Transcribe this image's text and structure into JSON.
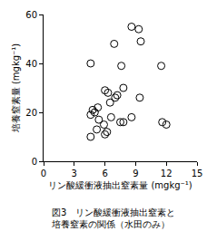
{
  "chart_data": {
    "type": "scatter",
    "title": "図3　リン酸緩衝液抽出窒素と\n培養窒素の関係（水田のみ）",
    "x_label": "リン酸緩衝液抽出窒素量 (mgkg⁻¹)",
    "y_label": "培養窒素量 (mgkg⁻¹)",
    "x": [
      4.6,
      6.9,
      7.6,
      8.6,
      9.3,
      9.5,
      11.5,
      4.8,
      4.6,
      5.0,
      5.3,
      6.0,
      6.3,
      6.5,
      7.0,
      7.2,
      7.8,
      9.4,
      5.4,
      5.9,
      6.0,
      6.6,
      5.2,
      6.2,
      4.6,
      7.5,
      7.8,
      8.6,
      11.6,
      12.0
    ],
    "values": [
      40,
      48,
      39,
      55,
      54,
      49,
      39,
      21,
      19,
      20,
      22,
      29,
      28,
      24,
      26,
      27,
      30,
      26,
      17,
      15,
      11,
      18,
      13,
      12,
      10,
      16,
      16,
      18,
      16,
      15
    ],
    "color": "#000000",
    "marker": "open_circle",
    "xlim": [
      0,
      15
    ],
    "xticks": [
      0,
      3,
      6,
      9,
      12,
      15
    ],
    "ylim": [
      0,
      60
    ],
    "yticks": [
      0,
      20,
      40,
      60
    ],
    "grid": false
  }
}
